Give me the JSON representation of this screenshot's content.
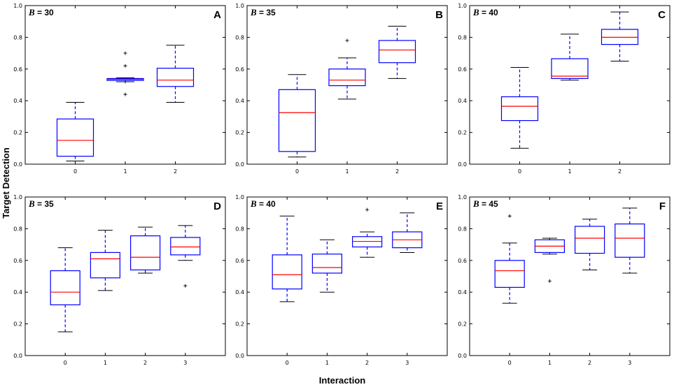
{
  "figure": {
    "xlabel": "Interaction",
    "ylabel": "Target Detection"
  },
  "chart_data": [
    {
      "type": "box",
      "panel": "A",
      "label_var": "B",
      "label_value": "= 30",
      "categories": [
        "0",
        "1",
        "2"
      ],
      "ylim": [
        0,
        1.0
      ],
      "yticks": [
        "0.0",
        "0.2",
        "0.4",
        "0.6",
        "0.8",
        "1.0"
      ],
      "boxes": [
        {
          "whislo": 0.02,
          "q1": 0.05,
          "med": 0.15,
          "q3": 0.285,
          "whishi": 0.39,
          "fliers": []
        },
        {
          "whislo": 0.52,
          "q1": 0.528,
          "med": 0.535,
          "q3": 0.54,
          "whishi": 0.545,
          "fliers": [
            0.7,
            0.62,
            0.52,
            0.44
          ]
        },
        {
          "whislo": 0.39,
          "q1": 0.49,
          "med": 0.53,
          "q3": 0.605,
          "whishi": 0.75,
          "fliers": []
        }
      ]
    },
    {
      "type": "box",
      "panel": "B",
      "label_var": "B",
      "label_value": "= 35",
      "categories": [
        "0",
        "1",
        "2"
      ],
      "ylim": [
        0,
        1.0
      ],
      "yticks": [
        "0.0",
        "0.2",
        "0.4",
        "0.6",
        "0.8",
        "1.0"
      ],
      "boxes": [
        {
          "whislo": 0.045,
          "q1": 0.08,
          "med": 0.325,
          "q3": 0.47,
          "whishi": 0.565,
          "fliers": []
        },
        {
          "whislo": 0.41,
          "q1": 0.495,
          "med": 0.53,
          "q3": 0.6,
          "whishi": 0.67,
          "fliers": [
            0.78
          ]
        },
        {
          "whislo": 0.54,
          "q1": 0.64,
          "med": 0.72,
          "q3": 0.78,
          "whishi": 0.87,
          "fliers": []
        }
      ]
    },
    {
      "type": "box",
      "panel": "C",
      "label_var": "B",
      "label_value": "= 40",
      "categories": [
        "0",
        "1",
        "2"
      ],
      "ylim": [
        0,
        1.0
      ],
      "yticks": [
        "0.0",
        "0.2",
        "0.4",
        "0.6",
        "0.8",
        "1.0"
      ],
      "boxes": [
        {
          "whislo": 0.1,
          "q1": 0.275,
          "med": 0.365,
          "q3": 0.425,
          "whishi": 0.61,
          "fliers": []
        },
        {
          "whislo": 0.53,
          "q1": 0.54,
          "med": 0.555,
          "q3": 0.665,
          "whishi": 0.82,
          "fliers": []
        },
        {
          "whislo": 0.65,
          "q1": 0.755,
          "med": 0.8,
          "q3": 0.85,
          "whishi": 0.96,
          "fliers": []
        }
      ]
    },
    {
      "type": "box",
      "panel": "D",
      "label_var": "B",
      "label_value": "= 35",
      "categories": [
        "0",
        "1",
        "2",
        "3"
      ],
      "ylim": [
        0,
        1.0
      ],
      "yticks": [
        "0.0",
        "0.2",
        "0.4",
        "0.6",
        "0.8",
        "1.0"
      ],
      "boxes": [
        {
          "whislo": 0.15,
          "q1": 0.32,
          "med": 0.4,
          "q3": 0.535,
          "whishi": 0.68,
          "fliers": []
        },
        {
          "whislo": 0.41,
          "q1": 0.49,
          "med": 0.61,
          "q3": 0.65,
          "whishi": 0.79,
          "fliers": []
        },
        {
          "whislo": 0.52,
          "q1": 0.54,
          "med": 0.62,
          "q3": 0.755,
          "whishi": 0.81,
          "fliers": []
        },
        {
          "whislo": 0.6,
          "q1": 0.635,
          "med": 0.685,
          "q3": 0.745,
          "whishi": 0.82,
          "fliers": [
            0.44
          ]
        }
      ]
    },
    {
      "type": "box",
      "panel": "E",
      "label_var": "B",
      "label_value": "= 40",
      "categories": [
        "0",
        "1",
        "2",
        "3"
      ],
      "ylim": [
        0,
        1.0
      ],
      "yticks": [
        "0.0",
        "0.2",
        "0.4",
        "0.6",
        "0.8",
        "1.0"
      ],
      "boxes": [
        {
          "whislo": 0.34,
          "q1": 0.42,
          "med": 0.51,
          "q3": 0.635,
          "whishi": 0.88,
          "fliers": []
        },
        {
          "whislo": 0.4,
          "q1": 0.52,
          "med": 0.555,
          "q3": 0.64,
          "whishi": 0.73,
          "fliers": []
        },
        {
          "whislo": 0.62,
          "q1": 0.685,
          "med": 0.72,
          "q3": 0.75,
          "whishi": 0.78,
          "fliers": [
            0.92
          ]
        },
        {
          "whislo": 0.65,
          "q1": 0.68,
          "med": 0.73,
          "q3": 0.78,
          "whishi": 0.9,
          "fliers": []
        }
      ]
    },
    {
      "type": "box",
      "panel": "F",
      "label_var": "B",
      "label_value": "= 45",
      "categories": [
        "0",
        "1",
        "2",
        "3"
      ],
      "ylim": [
        0,
        1.0
      ],
      "yticks": [
        "0.0",
        "0.2",
        "0.4",
        "0.6",
        "0.8",
        "1.0"
      ],
      "boxes": [
        {
          "whislo": 0.33,
          "q1": 0.43,
          "med": 0.535,
          "q3": 0.6,
          "whishi": 0.71,
          "fliers": [
            0.88
          ]
        },
        {
          "whislo": 0.64,
          "q1": 0.65,
          "med": 0.69,
          "q3": 0.73,
          "whishi": 0.74,
          "fliers": [
            0.47
          ]
        },
        {
          "whislo": 0.54,
          "q1": 0.645,
          "med": 0.74,
          "q3": 0.815,
          "whishi": 0.86,
          "fliers": []
        },
        {
          "whislo": 0.52,
          "q1": 0.62,
          "med": 0.74,
          "q3": 0.83,
          "whishi": 0.93,
          "fliers": []
        }
      ]
    }
  ],
  "colors": {
    "box": "#0000ff",
    "median": "#ff0000",
    "whisker": "#0000ff",
    "cap": "#000000",
    "flier": "#000000",
    "frame": "#000000"
  }
}
